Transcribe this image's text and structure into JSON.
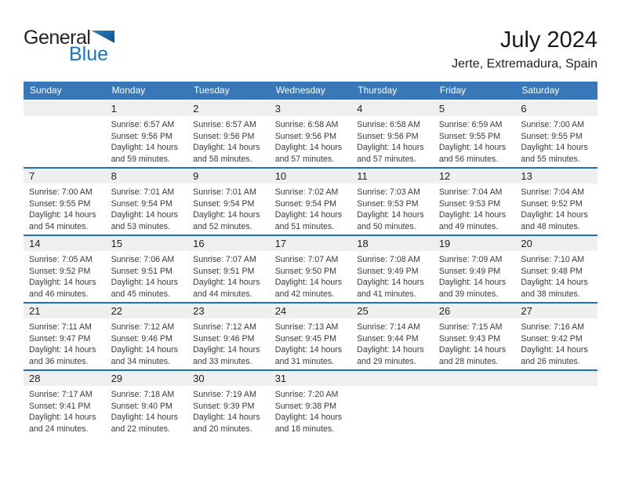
{
  "logo": {
    "general": "General",
    "blue": "Blue"
  },
  "header": {
    "title": "July 2024",
    "subtitle": "Jerte, Extremadura, Spain"
  },
  "colors": {
    "header_bg": "#3878b8",
    "row_border": "#2170b3",
    "strip_bg": "#efefef",
    "logo_blue": "#1b75bc"
  },
  "weekdays": [
    "Sunday",
    "Monday",
    "Tuesday",
    "Wednesday",
    "Thursday",
    "Friday",
    "Saturday"
  ],
  "weeks": [
    [
      {
        "day": "",
        "lines": []
      },
      {
        "day": "1",
        "lines": [
          "Sunrise: 6:57 AM",
          "Sunset: 9:56 PM",
          "Daylight: 14 hours",
          "and 59 minutes."
        ]
      },
      {
        "day": "2",
        "lines": [
          "Sunrise: 6:57 AM",
          "Sunset: 9:56 PM",
          "Daylight: 14 hours",
          "and 58 minutes."
        ]
      },
      {
        "day": "3",
        "lines": [
          "Sunrise: 6:58 AM",
          "Sunset: 9:56 PM",
          "Daylight: 14 hours",
          "and 57 minutes."
        ]
      },
      {
        "day": "4",
        "lines": [
          "Sunrise: 6:58 AM",
          "Sunset: 9:56 PM",
          "Daylight: 14 hours",
          "and 57 minutes."
        ]
      },
      {
        "day": "5",
        "lines": [
          "Sunrise: 6:59 AM",
          "Sunset: 9:55 PM",
          "Daylight: 14 hours",
          "and 56 minutes."
        ]
      },
      {
        "day": "6",
        "lines": [
          "Sunrise: 7:00 AM",
          "Sunset: 9:55 PM",
          "Daylight: 14 hours",
          "and 55 minutes."
        ]
      }
    ],
    [
      {
        "day": "7",
        "lines": [
          "Sunrise: 7:00 AM",
          "Sunset: 9:55 PM",
          "Daylight: 14 hours",
          "and 54 minutes."
        ]
      },
      {
        "day": "8",
        "lines": [
          "Sunrise: 7:01 AM",
          "Sunset: 9:54 PM",
          "Daylight: 14 hours",
          "and 53 minutes."
        ]
      },
      {
        "day": "9",
        "lines": [
          "Sunrise: 7:01 AM",
          "Sunset: 9:54 PM",
          "Daylight: 14 hours",
          "and 52 minutes."
        ]
      },
      {
        "day": "10",
        "lines": [
          "Sunrise: 7:02 AM",
          "Sunset: 9:54 PM",
          "Daylight: 14 hours",
          "and 51 minutes."
        ]
      },
      {
        "day": "11",
        "lines": [
          "Sunrise: 7:03 AM",
          "Sunset: 9:53 PM",
          "Daylight: 14 hours",
          "and 50 minutes."
        ]
      },
      {
        "day": "12",
        "lines": [
          "Sunrise: 7:04 AM",
          "Sunset: 9:53 PM",
          "Daylight: 14 hours",
          "and 49 minutes."
        ]
      },
      {
        "day": "13",
        "lines": [
          "Sunrise: 7:04 AM",
          "Sunset: 9:52 PM",
          "Daylight: 14 hours",
          "and 48 minutes."
        ]
      }
    ],
    [
      {
        "day": "14",
        "lines": [
          "Sunrise: 7:05 AM",
          "Sunset: 9:52 PM",
          "Daylight: 14 hours",
          "and 46 minutes."
        ]
      },
      {
        "day": "15",
        "lines": [
          "Sunrise: 7:06 AM",
          "Sunset: 9:51 PM",
          "Daylight: 14 hours",
          "and 45 minutes."
        ]
      },
      {
        "day": "16",
        "lines": [
          "Sunrise: 7:07 AM",
          "Sunset: 9:51 PM",
          "Daylight: 14 hours",
          "and 44 minutes."
        ]
      },
      {
        "day": "17",
        "lines": [
          "Sunrise: 7:07 AM",
          "Sunset: 9:50 PM",
          "Daylight: 14 hours",
          "and 42 minutes."
        ]
      },
      {
        "day": "18",
        "lines": [
          "Sunrise: 7:08 AM",
          "Sunset: 9:49 PM",
          "Daylight: 14 hours",
          "and 41 minutes."
        ]
      },
      {
        "day": "19",
        "lines": [
          "Sunrise: 7:09 AM",
          "Sunset: 9:49 PM",
          "Daylight: 14 hours",
          "and 39 minutes."
        ]
      },
      {
        "day": "20",
        "lines": [
          "Sunrise: 7:10 AM",
          "Sunset: 9:48 PM",
          "Daylight: 14 hours",
          "and 38 minutes."
        ]
      }
    ],
    [
      {
        "day": "21",
        "lines": [
          "Sunrise: 7:11 AM",
          "Sunset: 9:47 PM",
          "Daylight: 14 hours",
          "and 36 minutes."
        ]
      },
      {
        "day": "22",
        "lines": [
          "Sunrise: 7:12 AM",
          "Sunset: 9:46 PM",
          "Daylight: 14 hours",
          "and 34 minutes."
        ]
      },
      {
        "day": "23",
        "lines": [
          "Sunrise: 7:12 AM",
          "Sunset: 9:46 PM",
          "Daylight: 14 hours",
          "and 33 minutes."
        ]
      },
      {
        "day": "24",
        "lines": [
          "Sunrise: 7:13 AM",
          "Sunset: 9:45 PM",
          "Daylight: 14 hours",
          "and 31 minutes."
        ]
      },
      {
        "day": "25",
        "lines": [
          "Sunrise: 7:14 AM",
          "Sunset: 9:44 PM",
          "Daylight: 14 hours",
          "and 29 minutes."
        ]
      },
      {
        "day": "26",
        "lines": [
          "Sunrise: 7:15 AM",
          "Sunset: 9:43 PM",
          "Daylight: 14 hours",
          "and 28 minutes."
        ]
      },
      {
        "day": "27",
        "lines": [
          "Sunrise: 7:16 AM",
          "Sunset: 9:42 PM",
          "Daylight: 14 hours",
          "and 26 minutes."
        ]
      }
    ],
    [
      {
        "day": "28",
        "lines": [
          "Sunrise: 7:17 AM",
          "Sunset: 9:41 PM",
          "Daylight: 14 hours",
          "and 24 minutes."
        ]
      },
      {
        "day": "29",
        "lines": [
          "Sunrise: 7:18 AM",
          "Sunset: 9:40 PM",
          "Daylight: 14 hours",
          "and 22 minutes."
        ]
      },
      {
        "day": "30",
        "lines": [
          "Sunrise: 7:19 AM",
          "Sunset: 9:39 PM",
          "Daylight: 14 hours",
          "and 20 minutes."
        ]
      },
      {
        "day": "31",
        "lines": [
          "Sunrise: 7:20 AM",
          "Sunset: 9:38 PM",
          "Daylight: 14 hours",
          "and 18 minutes."
        ]
      },
      {
        "day": "",
        "lines": []
      },
      {
        "day": "",
        "lines": []
      },
      {
        "day": "",
        "lines": []
      }
    ]
  ]
}
